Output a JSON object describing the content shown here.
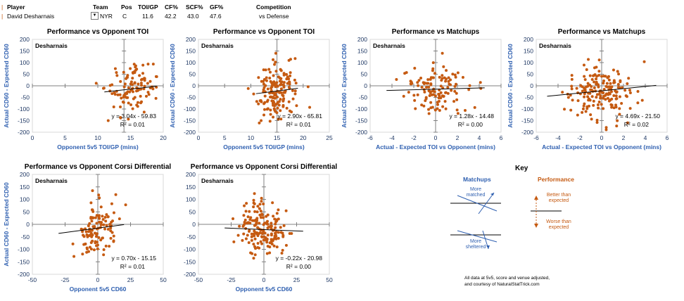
{
  "header": {
    "columns": [
      "Player",
      "Team",
      "Pos",
      "TOI/GP",
      "CF%",
      "SCF%",
      "GF%",
      "Competition"
    ],
    "row": {
      "player": "David Desharnais",
      "team": "NYR",
      "pos": "C",
      "toi_gp": "11.6",
      "cf": "42.2",
      "scf": "43.0",
      "gf": "47.6",
      "competition": "vs Defense"
    }
  },
  "colors": {
    "point": "#c55a11",
    "axis_label": "#2e5fb0",
    "trend": "#000000"
  },
  "chart_data": [
    {
      "type": "scatter",
      "id": "c1",
      "title": "Performance vs Opponent TOI",
      "player_label": "Desharnais",
      "xlabel": "Opponent 5v5 TOI/GP (mins)",
      "ylabel": "Actual CD60 - Expected CD60",
      "xlim": [
        0,
        20
      ],
      "ylim": [
        -200,
        200
      ],
      "xticks": [
        0,
        5,
        10,
        15,
        20
      ],
      "xticklabels": [
        "0",
        "5",
        "10",
        "15",
        "20"
      ],
      "yticks": [
        200,
        150,
        100,
        50,
        0,
        -50,
        -100,
        -150,
        -200
      ],
      "yticklabels": [
        "200",
        "150",
        "100",
        "50",
        "0",
        "-50",
        "-100",
        "-150",
        "-200"
      ],
      "equation": "y = 3.04x - 59.83",
      "r2": "R² = 0.01",
      "slope": 3.04,
      "intercept": -59.83,
      "fit_range": [
        11,
        19
      ],
      "crosshair": [
        14,
        0
      ],
      "seed": 11,
      "n": 110,
      "xmean": 15.2,
      "xsd": 1.9
    },
    {
      "type": "scatter",
      "id": "c2",
      "title": "Performance vs Opponent TOI",
      "player_label": "Desharnais",
      "xlabel": "Opponent 5v5 TOI/GP (mins)",
      "ylabel": "Actual CD60 - Expected CD60",
      "xlim": [
        0,
        25
      ],
      "ylim": [
        -200,
        200
      ],
      "xticks": [
        0,
        5,
        10,
        15,
        20,
        25
      ],
      "xticklabels": [
        "0",
        "5",
        "10",
        "15",
        "20",
        "25"
      ],
      "yticks": [
        200,
        150,
        100,
        50,
        0,
        -50,
        -100,
        -150,
        -200
      ],
      "yticklabels": [
        "200",
        "150",
        "100",
        "50",
        "0",
        "-50",
        "-100",
        "-150",
        "-200"
      ],
      "equation": "y = 2.90x - 65.81",
      "r2": "R² = 0.01",
      "slope": 2.9,
      "intercept": -65.81,
      "fit_range": [
        11,
        19
      ],
      "crosshair": [
        15,
        0
      ],
      "seed": 22,
      "n": 160,
      "xmean": 15.0,
      "xsd": 2.0
    },
    {
      "type": "scatter",
      "id": "c3",
      "title": "Performance vs Matchups",
      "player_label": "Desharnais",
      "xlabel": "Actual - Expected TOI vs Opponent (mins)",
      "ylabel": "Actual CD60 - Expected CD60",
      "xlim": [
        -6,
        6
      ],
      "ylim": [
        -200,
        200
      ],
      "xticks": [
        -6,
        -4,
        -2,
        0,
        2,
        4,
        6
      ],
      "xticklabels": [
        "-6",
        "-4",
        "-2",
        "0",
        "2",
        "4",
        "6"
      ],
      "yticks": [
        200,
        150,
        100,
        50,
        0,
        -50,
        -100,
        -150,
        -200
      ],
      "yticklabels": [
        "200",
        "150",
        "100",
        "50",
        "0",
        "-50",
        "-100",
        "-150",
        "-200"
      ],
      "equation": "y = 1.28x - 14.48",
      "r2": "R² = 0.00",
      "slope": 1.28,
      "intercept": -14.48,
      "fit_range": [
        -4.5,
        4.5
      ],
      "crosshair": [
        0,
        0
      ],
      "seed": 33,
      "n": 120,
      "xmean": 0.0,
      "xsd": 1.4
    },
    {
      "type": "scatter",
      "id": "c4",
      "title": "Performance vs Matchups",
      "player_label": "Desharnais",
      "xlabel": "Actual - Expected TOI vs Opponent (mins)",
      "ylabel": "Actual CD60 - Expected CD60",
      "xlim": [
        -6,
        6
      ],
      "ylim": [
        -200,
        200
      ],
      "xticks": [
        -6,
        -4,
        -2,
        0,
        2,
        4,
        6
      ],
      "xticklabels": [
        "-6",
        "-4",
        "-2",
        "0",
        "2",
        "4",
        "6"
      ],
      "yticks": [
        200,
        150,
        100,
        50,
        0,
        -50,
        -100,
        -150,
        -200
      ],
      "yticklabels": [
        "200",
        "150",
        "100",
        "50",
        "0",
        "-50",
        "-100",
        "-150",
        "-200"
      ],
      "equation": "y = 4.69x - 21.50",
      "r2": "R² = 0.02",
      "slope": 4.69,
      "intercept": -21.5,
      "fit_range": [
        -5,
        5
      ],
      "crosshair": [
        0,
        0
      ],
      "seed": 44,
      "n": 170,
      "xmean": 0.0,
      "xsd": 1.6
    },
    {
      "type": "scatter",
      "id": "c5",
      "title": "Performance vs Opponent Corsi Differential",
      "player_label": "Desharnais",
      "xlabel": "Opponent 5v5 CD60",
      "ylabel": "Actual CD60 - Expected CD60",
      "xlim": [
        -50,
        50
      ],
      "ylim": [
        -200,
        200
      ],
      "xticks": [
        -50,
        -25,
        0,
        25,
        50
      ],
      "xticklabels": [
        "-50",
        "-25",
        "0",
        "25",
        "50"
      ],
      "yticks": [
        200,
        150,
        100,
        50,
        0,
        -50,
        -100,
        -150,
        -200
      ],
      "yticklabels": [
        "200",
        "150",
        "100",
        "50",
        "0",
        "-50",
        "-100",
        "-150",
        "-200"
      ],
      "equation": "y = 0.70x - 15.15",
      "r2": "R² = 0.01",
      "slope": 0.7,
      "intercept": -15.15,
      "fit_range": [
        -30,
        20
      ],
      "crosshair": [
        0,
        0
      ],
      "seed": 55,
      "n": 115,
      "xmean": 0.0,
      "xsd": 8.0
    },
    {
      "type": "scatter",
      "id": "c6",
      "title": "Performance vs Opponent Corsi Differential",
      "player_label": "Desharnais",
      "xlabel": "Opponent 5v5 CD60",
      "ylabel": "",
      "xlim": [
        -50,
        50
      ],
      "ylim": [
        -200,
        200
      ],
      "xticks": [
        -50,
        -25,
        0,
        25,
        50
      ],
      "xticklabels": [
        "-50",
        "-25",
        "0",
        "25",
        "50"
      ],
      "yticks": [
        200,
        150,
        100,
        50,
        0,
        -50,
        -100,
        -150,
        -200
      ],
      "yticklabels": [
        "200",
        "150",
        "100",
        "50",
        "0",
        "-50",
        "-100",
        "-150",
        "-200"
      ],
      "equation": "y = -0.22x - 20.98",
      "r2": "R² = 0.00",
      "slope": -0.22,
      "intercept": -20.98,
      "fit_range": [
        -30,
        30
      ],
      "crosshair": [
        0,
        0
      ],
      "seed": 66,
      "n": 170,
      "xmean": -1.0,
      "xsd": 9.0
    }
  ],
  "key": {
    "title": "Key",
    "matchups_heading": "Matchups",
    "more_matched": "More matched",
    "more_sheltered": "More sheltered",
    "performance_heading": "Performance",
    "better": "Better than expected",
    "worse": "Worse than expected",
    "footnote_line1": "All data at 5v5, score and venue adjusted,",
    "footnote_line2": "and courtesy of NaturalStatTrick.com"
  }
}
